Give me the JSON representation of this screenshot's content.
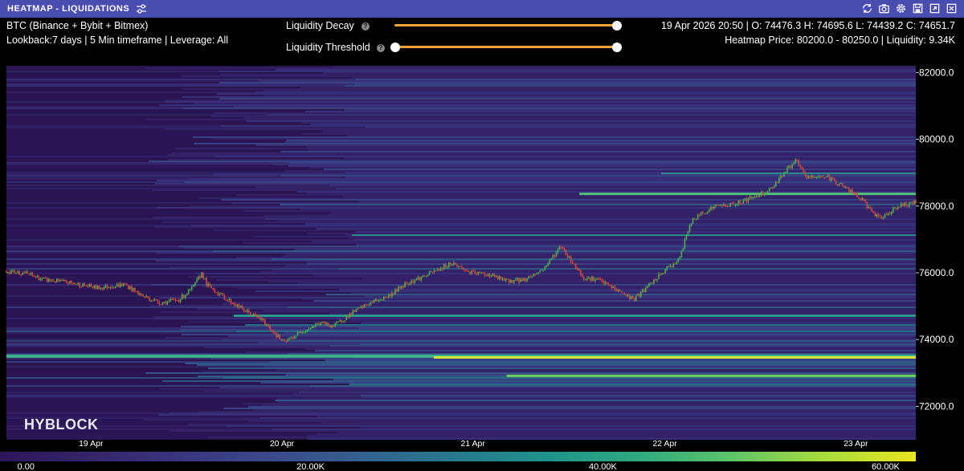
{
  "header": {
    "title": "HEATMAP - LIQUIDATIONS"
  },
  "info_left": {
    "line1": "BTC (Binance + Bybit + Bitmex)",
    "line2": "Lookback:7 days | 5 Min timeframe | Leverage: All"
  },
  "sliders": [
    {
      "label": "Liquidity Decay",
      "value": 1.0
    },
    {
      "label": "Liquidity Threshold",
      "value_min": 0.0,
      "value_max": 1.0
    }
  ],
  "info_right": {
    "line1": "19 Apr 2026 20:50 | O: 74476.3 H: 74695.6 L: 74439.2 C: 74651.7",
    "line2": "Heatmap Price: 80200.0 - 80250.0 | Liquidity: 9.34K"
  },
  "watermark": "HYBLOCK",
  "icons": [
    "refresh-icon",
    "camera-icon",
    "gear-icon",
    "save-icon",
    "expand-icon",
    "close-icon"
  ],
  "colors": {
    "titlebar": "#4a4db0",
    "slider": "#f3a33a",
    "candle_up": "#4caf50",
    "candle_down": "#e0473a"
  },
  "chart_data": {
    "type": "heatmap",
    "y_axis": {
      "ticks": [
        "82000.0",
        "80000.0",
        "78000.0",
        "76000.0",
        "74000.0",
        "72000.0"
      ],
      "range": [
        71000,
        82200
      ]
    },
    "x_axis": {
      "ticks": [
        "19 Apr",
        "20 Apr",
        "21 Apr",
        "22 Apr",
        "23 Apr"
      ]
    },
    "liquidity_scale": {
      "ticks": [
        "0.00",
        "20.00K",
        "40.00K",
        "60.00K"
      ]
    },
    "price_path": [
      [
        0.0,
        76050
      ],
      [
        0.02,
        76000
      ],
      [
        0.04,
        75800
      ],
      [
        0.07,
        75700
      ],
      [
        0.1,
        75550
      ],
      [
        0.13,
        75650
      ],
      [
        0.15,
        75300
      ],
      [
        0.17,
        75100
      ],
      [
        0.19,
        75200
      ],
      [
        0.205,
        75550
      ],
      [
        0.215,
        76000
      ],
      [
        0.22,
        75650
      ],
      [
        0.24,
        75250
      ],
      [
        0.26,
        74900
      ],
      [
        0.28,
        74600
      ],
      [
        0.295,
        74200
      ],
      [
        0.305,
        73900
      ],
      [
        0.325,
        74250
      ],
      [
        0.345,
        74500
      ],
      [
        0.36,
        74400
      ],
      [
        0.38,
        74800
      ],
      [
        0.4,
        75100
      ],
      [
        0.42,
        75300
      ],
      [
        0.44,
        75700
      ],
      [
        0.46,
        75900
      ],
      [
        0.475,
        76100
      ],
      [
        0.49,
        76300
      ],
      [
        0.51,
        76000
      ],
      [
        0.53,
        75950
      ],
      [
        0.55,
        75750
      ],
      [
        0.57,
        75800
      ],
      [
        0.59,
        76100
      ],
      [
        0.61,
        76800
      ],
      [
        0.62,
        76400
      ],
      [
        0.635,
        75850
      ],
      [
        0.65,
        75800
      ],
      [
        0.67,
        75500
      ],
      [
        0.69,
        75200
      ],
      [
        0.71,
        75700
      ],
      [
        0.725,
        76100
      ],
      [
        0.74,
        76400
      ],
      [
        0.752,
        77500
      ],
      [
        0.765,
        77800
      ],
      [
        0.78,
        78000
      ],
      [
        0.8,
        78050
      ],
      [
        0.82,
        78250
      ],
      [
        0.84,
        78500
      ],
      [
        0.855,
        79000
      ],
      [
        0.868,
        79350
      ],
      [
        0.88,
        78850
      ],
      [
        0.9,
        78900
      ],
      [
        0.92,
        78600
      ],
      [
        0.94,
        78200
      ],
      [
        0.96,
        77600
      ],
      [
        0.98,
        78000
      ],
      [
        1.0,
        78100
      ]
    ]
  }
}
